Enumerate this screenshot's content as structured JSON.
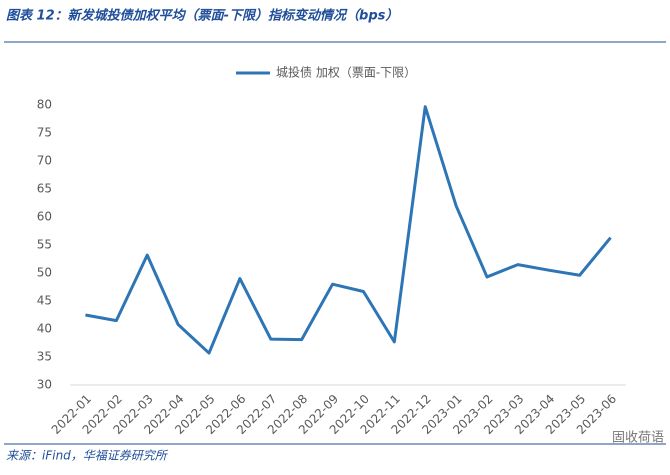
{
  "chart_data": {
    "type": "line",
    "title": "图表 12：新发城投债加权平均（票面-下限）指标变动情况（bps）",
    "source": "来源：iFind，华福证券研究所",
    "watermark": "固收荷语",
    "categories": [
      "2022-01",
      "2022-02",
      "2022-03",
      "2022-04",
      "2022-05",
      "2022-06",
      "2022-07",
      "2022-08",
      "2022-09",
      "2022-10",
      "2022-11",
      "2022-12",
      "2023-01",
      "2023-02",
      "2023-03",
      "2023-04",
      "2023-05",
      "2023-06"
    ],
    "series": [
      {
        "name": "城投债 加权（票面-下限）",
        "color": "#2e75b6",
        "values": [
          42.5,
          41.5,
          53.2,
          40.8,
          35.7,
          49,
          38.2,
          38.1,
          48,
          46.7,
          37.7,
          79.7,
          62,
          49.3,
          51.5,
          50.5,
          49.6,
          56.3
        ]
      }
    ],
    "ylim": [
      30,
      80
    ],
    "yticks": [
      30,
      35,
      40,
      45,
      50,
      55,
      60,
      65,
      70,
      75,
      80
    ],
    "grid": false
  }
}
